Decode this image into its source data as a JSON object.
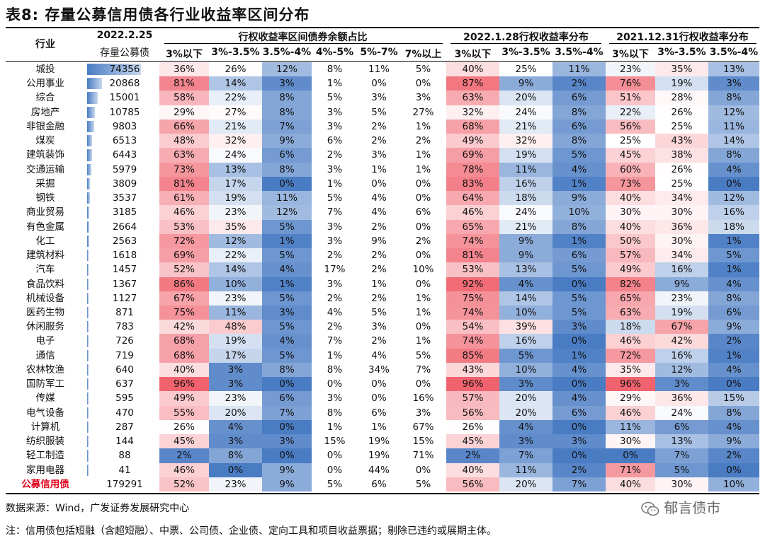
{
  "title": "表8:  存量公募信用债各行业收益率区间分布",
  "header": {
    "industry": "行业",
    "amount_date": "2022.2.25",
    "amount_label": "存量公募债",
    "group1": "行权收益率区间债券余额占比",
    "group2": "2022.1.28行权收益率分布",
    "group3": "2021.12.31行权收益率分布",
    "buckets1": [
      "3%以下",
      "3%-3.5%",
      "3.5%-4%",
      "4%-5%",
      "5%-7%",
      "7%以上"
    ],
    "buckets2": [
      "3%以下",
      "3%-3.5%",
      "3.5%-4%"
    ],
    "buckets3": [
      "3%以下",
      "3%-3.5%",
      "3.5%-4%"
    ]
  },
  "max_amount": 74356,
  "rows": [
    {
      "industry": "城投",
      "amount": 74356,
      "v": [
        36,
        26,
        12,
        8,
        11,
        5,
        40,
        25,
        11,
        23,
        35,
        13
      ]
    },
    {
      "industry": "公用事业",
      "amount": 20868,
      "v": [
        81,
        14,
        3,
        1,
        0,
        0,
        87,
        9,
        2,
        76,
        19,
        3
      ]
    },
    {
      "industry": "综合",
      "amount": 15001,
      "v": [
        58,
        22,
        8,
        5,
        3,
        3,
        63,
        20,
        6,
        51,
        28,
        8
      ]
    },
    {
      "industry": "房地产",
      "amount": 10785,
      "v": [
        29,
        27,
        8,
        3,
        5,
        27,
        32,
        24,
        8,
        22,
        26,
        12
      ]
    },
    {
      "industry": "非银金融",
      "amount": 9803,
      "v": [
        66,
        21,
        7,
        3,
        2,
        1,
        68,
        21,
        6,
        56,
        25,
        11
      ]
    },
    {
      "industry": "煤炭",
      "amount": 6513,
      "v": [
        48,
        32,
        9,
        6,
        2,
        2,
        49,
        32,
        8,
        25,
        43,
        14
      ]
    },
    {
      "industry": "建筑装饰",
      "amount": 6443,
      "v": [
        63,
        24,
        6,
        2,
        3,
        1,
        69,
        19,
        5,
        45,
        38,
        8
      ]
    },
    {
      "industry": "交通运输",
      "amount": 5979,
      "v": [
        73,
        13,
        8,
        3,
        1,
        1,
        78,
        11,
        4,
        60,
        26,
        4
      ]
    },
    {
      "industry": "采掘",
      "amount": 3809,
      "v": [
        81,
        17,
        0,
        1,
        0,
        0,
        83,
        16,
        1,
        73,
        25,
        0
      ]
    },
    {
      "industry": "钢铁",
      "amount": 3537,
      "v": [
        61,
        19,
        11,
        5,
        4,
        0,
        64,
        18,
        9,
        40,
        34,
        12
      ]
    },
    {
      "industry": "商业贸易",
      "amount": 3185,
      "v": [
        46,
        23,
        12,
        7,
        4,
        6,
        46,
        24,
        10,
        30,
        30,
        16
      ]
    },
    {
      "industry": "有色金属",
      "amount": 2664,
      "v": [
        53,
        35,
        5,
        3,
        2,
        0,
        65,
        21,
        8,
        40,
        36,
        18
      ]
    },
    {
      "industry": "化工",
      "amount": 2563,
      "v": [
        72,
        12,
        1,
        3,
        9,
        2,
        74,
        9,
        1,
        50,
        30,
        1
      ]
    },
    {
      "industry": "建筑材料",
      "amount": 1618,
      "v": [
        69,
        22,
        5,
        2,
        2,
        0,
        81,
        9,
        6,
        57,
        34,
        5
      ]
    },
    {
      "industry": "汽车",
      "amount": 1457,
      "v": [
        52,
        14,
        4,
        17,
        2,
        10,
        53,
        13,
        5,
        49,
        16,
        1
      ]
    },
    {
      "industry": "食品饮料",
      "amount": 1367,
      "v": [
        86,
        10,
        1,
        3,
        1,
        0,
        92,
        4,
        0,
        82,
        9,
        4
      ]
    },
    {
      "industry": "机械设备",
      "amount": 1127,
      "v": [
        67,
        23,
        5,
        2,
        2,
        1,
        75,
        14,
        5,
        65,
        23,
        8
      ]
    },
    {
      "industry": "医药生物",
      "amount": 871,
      "v": [
        75,
        11,
        3,
        4,
        5,
        1,
        74,
        10,
        5,
        63,
        19,
        6
      ]
    },
    {
      "industry": "休闲服务",
      "amount": 783,
      "v": [
        42,
        48,
        5,
        2,
        3,
        0,
        54,
        39,
        3,
        18,
        67,
        9
      ]
    },
    {
      "industry": "电子",
      "amount": 726,
      "v": [
        68,
        19,
        4,
        7,
        2,
        1,
        74,
        16,
        0,
        46,
        42,
        2
      ]
    },
    {
      "industry": "通信",
      "amount": 719,
      "v": [
        68,
        17,
        5,
        1,
        4,
        5,
        85,
        5,
        1,
        72,
        16,
        1
      ]
    },
    {
      "industry": "农林牧渔",
      "amount": 640,
      "v": [
        40,
        3,
        8,
        8,
        34,
        7,
        43,
        10,
        4,
        35,
        12,
        4
      ]
    },
    {
      "industry": "国防军工",
      "amount": 637,
      "v": [
        96,
        3,
        0,
        0,
        0,
        0,
        96,
        3,
        0,
        96,
        3,
        0
      ]
    },
    {
      "industry": "传媒",
      "amount": 595,
      "v": [
        49,
        23,
        6,
        3,
        0,
        16,
        57,
        20,
        4,
        29,
        36,
        15
      ]
    },
    {
      "industry": "电气设备",
      "amount": 470,
      "v": [
        55,
        20,
        7,
        8,
        6,
        3,
        56,
        20,
        6,
        46,
        24,
        8
      ]
    },
    {
      "industry": "计算机",
      "amount": 287,
      "v": [
        26,
        4,
        0,
        1,
        1,
        67,
        26,
        4,
        0,
        11,
        6,
        4
      ]
    },
    {
      "industry": "纺织服装",
      "amount": 144,
      "v": [
        45,
        3,
        3,
        15,
        19,
        15,
        45,
        3,
        3,
        30,
        13,
        9
      ]
    },
    {
      "industry": "轻工制造",
      "amount": 88,
      "v": [
        2,
        8,
        0,
        0,
        19,
        71,
        2,
        7,
        0,
        0,
        7,
        2
      ]
    },
    {
      "industry": "家用电器",
      "amount": 41,
      "v": [
        46,
        0,
        9,
        0,
        44,
        0,
        40,
        11,
        2,
        71,
        5,
        0
      ]
    },
    {
      "industry": "公募信用债",
      "amount": 179291,
      "v": [
        52,
        23,
        9,
        5,
        6,
        5,
        56,
        20,
        7,
        40,
        30,
        10
      ],
      "total": true
    }
  ],
  "colors": {
    "red_strong": "#f0636e",
    "white": "#ffffff",
    "blue_strong": "#4a7cc4",
    "total_label": "#e0001b"
  },
  "footer": {
    "source": "数据来源：Wind，广发证券发展研究中心",
    "note": "注：信用债包括短融（含超短融）、中票、公司债、企业债、定向工具和项目收益票据；剔除已违约或展期主体。",
    "brand": "郁言债市"
  }
}
